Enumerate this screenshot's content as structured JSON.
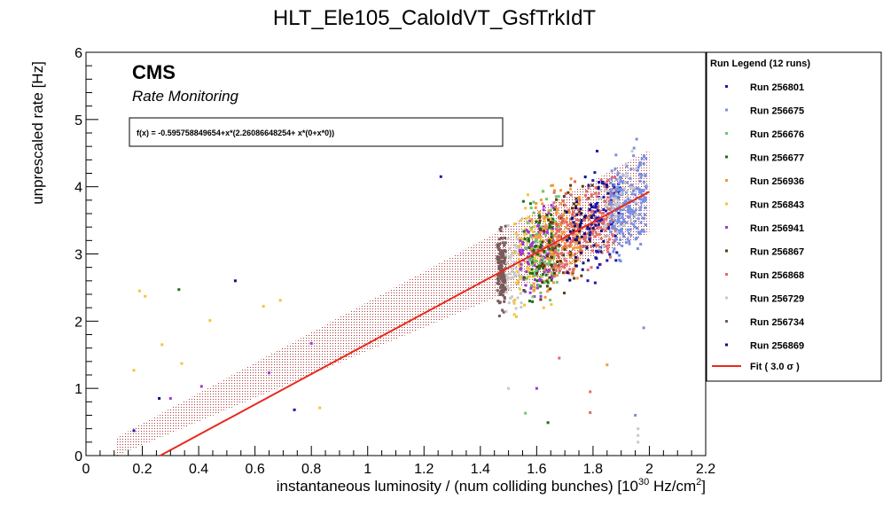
{
  "chart_data": {
    "type": "scatter",
    "title": "HLT_Ele105_CaloIdVT_GsfTrkIdT",
    "xlabel": "instantaneous luminosity / (num colliding bunches) [10",
    "xlabel_exp": "30",
    "xlabel_unit": " Hz/cm",
    "xlabel_unit_exp": "2",
    "xlabel_end": "]",
    "ylabel": "unprescaled rate [Hz]",
    "xlim": [
      0,
      2.2
    ],
    "ylim": [
      0,
      6
    ],
    "x_ticks": [
      "0",
      "0.2",
      "0.4",
      "0.6",
      "0.8",
      "1",
      "1.2",
      "1.4",
      "1.6",
      "1.8",
      "2",
      "2.2"
    ],
    "y_ticks": [
      "0",
      "1",
      "2",
      "3",
      "4",
      "5",
      "6"
    ],
    "cms_label": "CMS",
    "cms_sublabel": "Rate Monitoring",
    "fit_formula": "f(x) = -0.595758849654+x*(2.26086648254+ x*(0+x*0))",
    "fit": {
      "intercept": -0.595758849654,
      "slope": 2.26086648254,
      "band_sigma": 3.0,
      "band_halfwidth": 0.62,
      "x_range": [
        0.11,
        2.0
      ],
      "color": "#e8291c"
    },
    "legend": {
      "title": "Run Legend (12 runs)",
      "fit_label": "Fit ( 3.0  σ )"
    },
    "series": [
      {
        "name": "Run 256801",
        "color": "#1a1ab0"
      },
      {
        "name": "Run 256675",
        "color": "#7b8fe0"
      },
      {
        "name": "Run 256676",
        "color": "#6cc76c"
      },
      {
        "name": "Run 256677",
        "color": "#1f6e1f"
      },
      {
        "name": "Run 256936",
        "color": "#f29a3c"
      },
      {
        "name": "Run 256843",
        "color": "#f2c53c"
      },
      {
        "name": "Run 256941",
        "color": "#9b3ccf"
      },
      {
        "name": "Run 256867",
        "color": "#5a3a12"
      },
      {
        "name": "Run 256868",
        "color": "#e06a6a"
      },
      {
        "name": "Run 256729",
        "color": "#c8c8c8"
      },
      {
        "name": "Run 256734",
        "color": "#7a5a5a"
      },
      {
        "name": "Run 256869",
        "color": "#10107a"
      }
    ],
    "outliers": [
      {
        "x": 1.26,
        "y": 4.15,
        "series": 0
      },
      {
        "x": 0.53,
        "y": 2.6,
        "series": 11
      },
      {
        "x": 0.33,
        "y": 2.47,
        "series": 3
      },
      {
        "x": 0.8,
        "y": 1.67,
        "series": 6
      },
      {
        "x": 0.19,
        "y": 2.45,
        "series": 5
      },
      {
        "x": 0.21,
        "y": 2.37,
        "series": 5
      },
      {
        "x": 0.27,
        "y": 1.65,
        "series": 5
      },
      {
        "x": 0.17,
        "y": 1.27,
        "series": 5
      },
      {
        "x": 0.34,
        "y": 1.37,
        "series": 5
      },
      {
        "x": 0.44,
        "y": 2.01,
        "series": 5
      },
      {
        "x": 0.63,
        "y": 2.22,
        "series": 5
      },
      {
        "x": 0.69,
        "y": 2.31,
        "series": 5
      },
      {
        "x": 0.41,
        "y": 1.03,
        "series": 6
      },
      {
        "x": 0.3,
        "y": 0.85,
        "series": 6
      },
      {
        "x": 0.26,
        "y": 0.85,
        "series": 11
      },
      {
        "x": 0.17,
        "y": 0.37,
        "series": 0
      },
      {
        "x": 0.74,
        "y": 0.68,
        "series": 0
      },
      {
        "x": 0.65,
        "y": 1.23,
        "series": 6
      },
      {
        "x": 0.83,
        "y": 0.71,
        "series": 5
      },
      {
        "x": 1.56,
        "y": 0.63,
        "series": 2
      },
      {
        "x": 1.6,
        "y": 1.0,
        "series": 6
      },
      {
        "x": 1.79,
        "y": 0.95,
        "series": 8
      },
      {
        "x": 1.79,
        "y": 0.64,
        "series": 8
      },
      {
        "x": 1.64,
        "y": 0.49,
        "series": 3
      },
      {
        "x": 1.85,
        "y": 1.35,
        "series": 4
      },
      {
        "x": 1.68,
        "y": 1.45,
        "series": 8
      },
      {
        "x": 1.96,
        "y": 0.2,
        "series": 9
      },
      {
        "x": 1.96,
        "y": 0.3,
        "series": 9
      },
      {
        "x": 1.96,
        "y": 0.4,
        "series": 9
      },
      {
        "x": 1.5,
        "y": 1.0,
        "series": 9
      },
      {
        "x": 1.98,
        "y": 1.9,
        "series": 1
      },
      {
        "x": 1.95,
        "y": 0.6,
        "series": 1
      }
    ]
  }
}
